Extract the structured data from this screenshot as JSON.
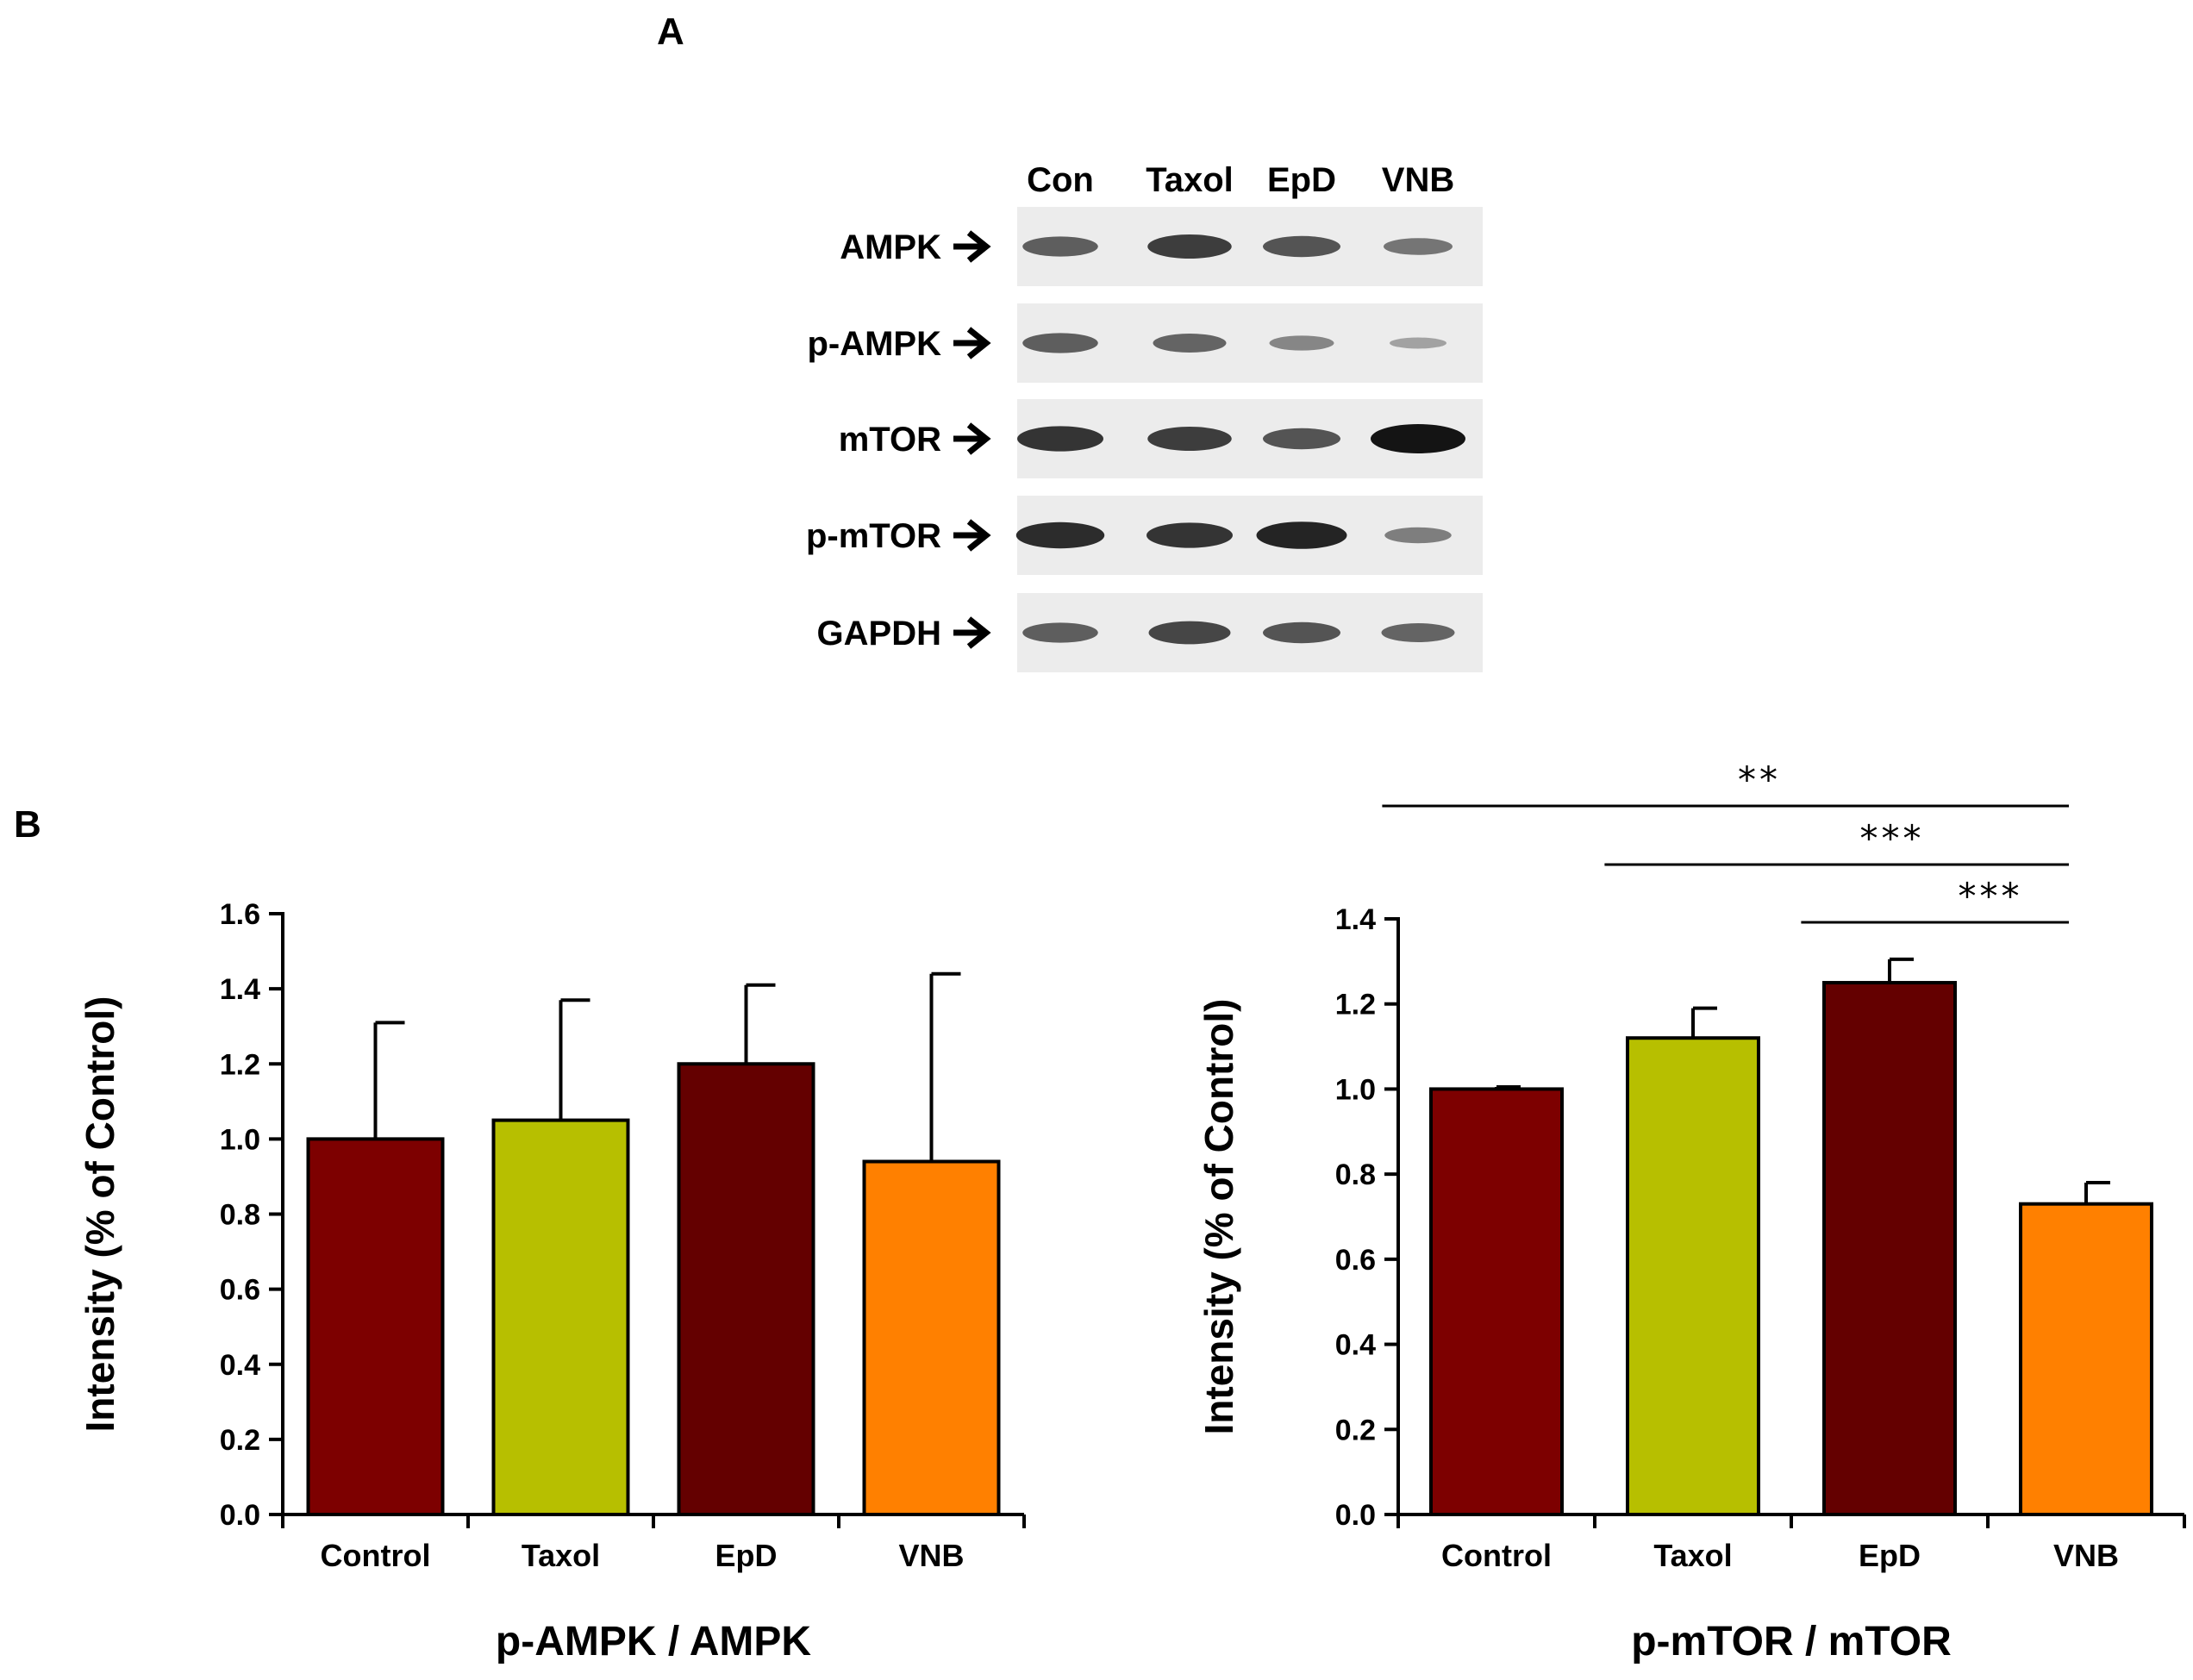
{
  "panel_labels": {
    "a": "A",
    "b": "B"
  },
  "blot": {
    "lanes": [
      "Con",
      "Taxol",
      "EpD",
      "VNB"
    ],
    "rows": [
      {
        "label": "AMPK",
        "intensity": [
          0.55,
          0.75,
          0.6,
          0.4
        ]
      },
      {
        "label": "p-AMPK",
        "intensity": [
          0.55,
          0.5,
          0.3,
          0.12
        ]
      },
      {
        "label": "mTOR",
        "intensity": [
          0.8,
          0.75,
          0.6,
          1.0
        ]
      },
      {
        "label": "p-mTOR",
        "intensity": [
          0.85,
          0.8,
          0.9,
          0.35
        ]
      },
      {
        "label": "GAPDH",
        "intensity": [
          0.55,
          0.7,
          0.6,
          0.5
        ]
      }
    ]
  },
  "chart_data": [
    {
      "type": "bar",
      "caption": "p-AMPK / AMPK",
      "ylabel": "Intensity (% of Control)",
      "xlabel": "",
      "ylim": [
        0,
        1.6
      ],
      "yticks": [
        "0.0",
        "0.2",
        "0.4",
        "0.6",
        "0.8",
        "1.0",
        "1.2",
        "1.4",
        "1.6"
      ],
      "categories": [
        "Control",
        "Taxol",
        "EpD",
        "VNB"
      ],
      "values": [
        1.0,
        1.05,
        1.2,
        0.94
      ],
      "errors": [
        0.31,
        0.32,
        0.21,
        0.5
      ],
      "colors": [
        "#7d0000",
        "#b7bf00",
        "#640000",
        "#ff8000"
      ],
      "grid": false,
      "significance": []
    },
    {
      "type": "bar",
      "caption": "p-mTOR / mTOR",
      "ylabel": "Intensity (% of Control)",
      "xlabel": "",
      "ylim": [
        0,
        1.4
      ],
      "yticks": [
        "0.0",
        "0.2",
        "0.4",
        "0.6",
        "0.8",
        "1.0",
        "1.2",
        "1.4"
      ],
      "categories": [
        "Control",
        "Taxol",
        "EpD",
        "VNB"
      ],
      "values": [
        1.0,
        1.12,
        1.25,
        0.73
      ],
      "errors": [
        0.005,
        0.07,
        0.055,
        0.05
      ],
      "colors": [
        "#7d0000",
        "#b7bf00",
        "#640000",
        "#ff8000"
      ],
      "grid": false,
      "significance": [
        {
          "from": "Control",
          "to": "VNB",
          "label": "**"
        },
        {
          "from": "Taxol",
          "to": "VNB",
          "label": "***"
        },
        {
          "from": "EpD",
          "to": "VNB",
          "label": "***"
        }
      ]
    }
  ]
}
